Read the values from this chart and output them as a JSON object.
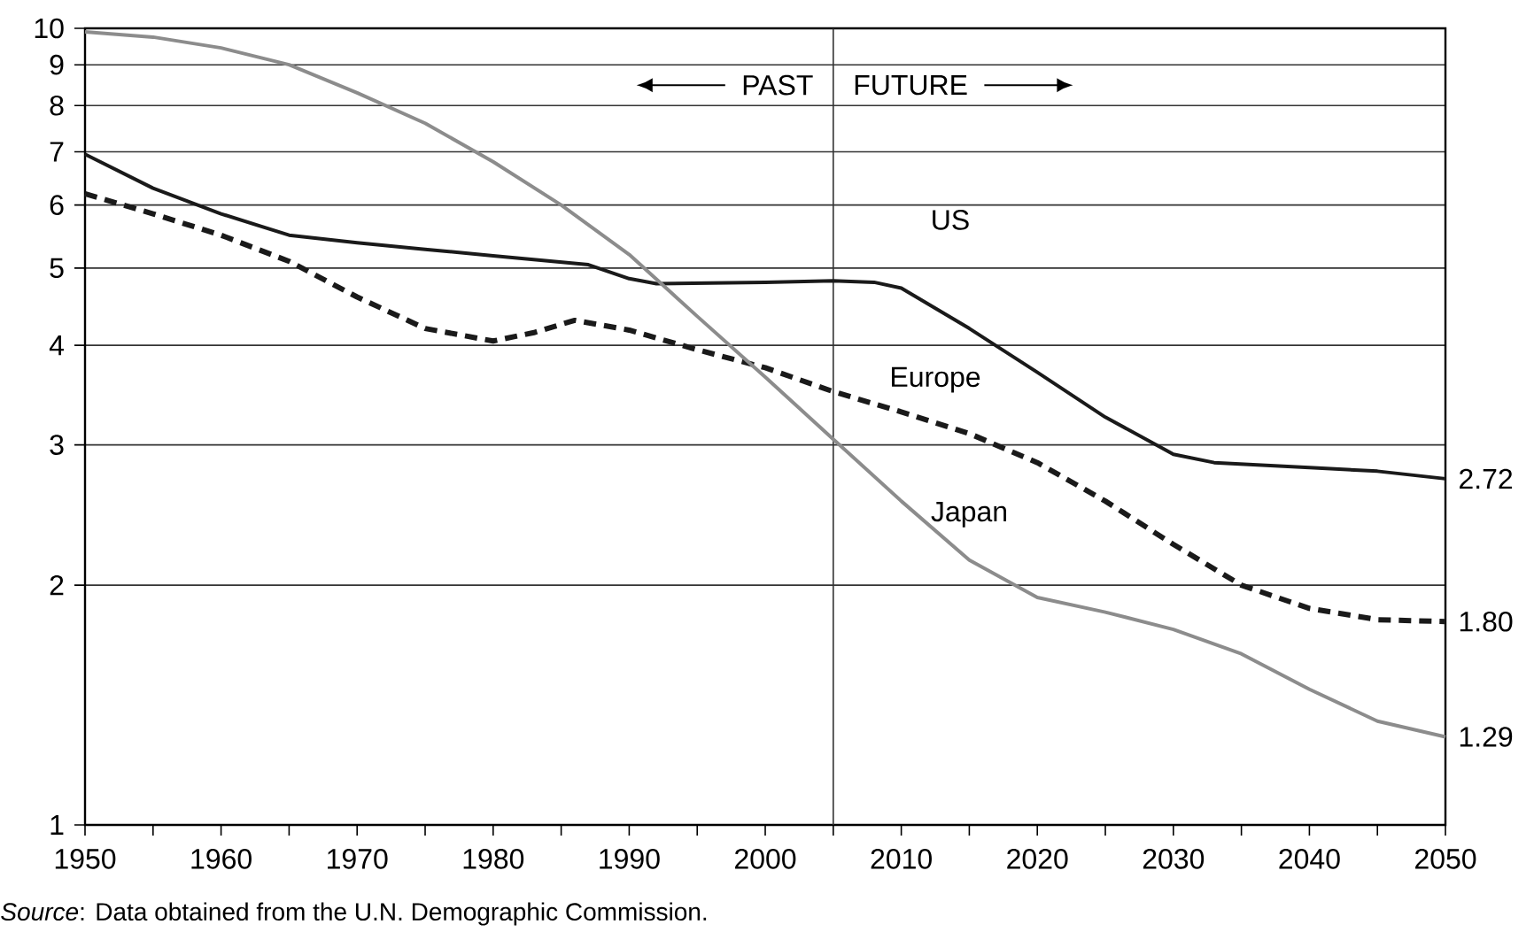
{
  "chart_data": {
    "type": "line",
    "log": "y",
    "grid": "y",
    "marker": "none",
    "xlim": [
      1950,
      2050
    ],
    "ylim": [
      1,
      10
    ],
    "xticks": [
      1950,
      {
        "value": 1955,
        "label": null
      },
      1960,
      {
        "value": 1965,
        "label": null
      },
      1970,
      {
        "value": 1975,
        "label": null
      },
      1980,
      {
        "value": 1985,
        "label": null
      },
      1990,
      {
        "value": 1995,
        "label": null
      },
      2000,
      {
        "value": 2005,
        "label": null
      },
      2010,
      {
        "value": 2015,
        "label": null
      },
      2020,
      {
        "value": 2025,
        "label": null
      },
      2030,
      {
        "value": 2035,
        "label": null
      },
      2040,
      {
        "value": 2045,
        "label": null
      },
      2050
    ],
    "yticks": [
      1,
      2,
      3,
      4,
      5,
      6,
      7,
      8,
      9,
      10
    ],
    "ref_lines": [
      {
        "axis": "x",
        "value": 2005,
        "color": "#333333"
      }
    ],
    "annotations": [
      "PAST",
      "FUTURE",
      "*Source*: Data obtained from the U.N. Demographic Commission."
    ],
    "series": [
      {
        "name": "US",
        "color": "#1a1a1a",
        "line_style": "solid",
        "x": [
          1950,
          1955,
          1960,
          1965,
          1970,
          1975,
          1980,
          1987,
          1990,
          1992,
          2000,
          2005,
          2008,
          2010,
          2015,
          2020,
          2025,
          2030,
          2033,
          2040,
          2045,
          2050
        ],
        "values": [
          6.95,
          6.3,
          5.85,
          5.5,
          5.38,
          5.28,
          5.18,
          5.05,
          4.85,
          4.78,
          4.8,
          4.82,
          4.8,
          4.72,
          4.2,
          3.7,
          3.25,
          2.92,
          2.85,
          2.81,
          2.78,
          2.72
        ],
        "value_labels": [
          null,
          null,
          null,
          null,
          null,
          null,
          null,
          null,
          null,
          null,
          null,
          null,
          null,
          null,
          null,
          null,
          null,
          null,
          null,
          null,
          null,
          "2.72"
        ]
      },
      {
        "name": "Europe",
        "color": "#1a1a1a",
        "line_style": "dashed",
        "x": [
          1950,
          1955,
          1960,
          1965,
          1970,
          1975,
          1980,
          1983,
          1986,
          1990,
          1995,
          2000,
          2005,
          2010,
          2015,
          2020,
          2025,
          2030,
          2035,
          2040,
          2045,
          2050
        ],
        "values": [
          6.2,
          5.85,
          5.5,
          5.1,
          4.6,
          4.2,
          4.05,
          4.15,
          4.3,
          4.18,
          3.95,
          3.75,
          3.5,
          3.3,
          3.1,
          2.85,
          2.55,
          2.25,
          2.0,
          1.87,
          1.81,
          1.8
        ],
        "value_labels": [
          null,
          null,
          null,
          null,
          null,
          null,
          null,
          null,
          null,
          null,
          null,
          null,
          null,
          null,
          null,
          null,
          null,
          null,
          null,
          null,
          null,
          "1.80"
        ]
      },
      {
        "name": "Japan",
        "color": "#8c8c8c",
        "line_style": "solid",
        "x": [
          1950,
          1955,
          1960,
          1965,
          1970,
          1975,
          1980,
          1985,
          1990,
          1995,
          2000,
          2005,
          2010,
          2015,
          2020,
          2025,
          2030,
          2035,
          2040,
          2045,
          2050
        ],
        "values": [
          9.9,
          9.75,
          9.45,
          9.0,
          8.3,
          7.6,
          6.8,
          6.0,
          5.2,
          4.35,
          3.65,
          3.05,
          2.55,
          2.15,
          1.93,
          1.85,
          1.76,
          1.64,
          1.48,
          1.35,
          1.29
        ],
        "value_labels": [
          null,
          null,
          null,
          null,
          null,
          null,
          null,
          null,
          null,
          null,
          null,
          null,
          null,
          null,
          null,
          null,
          null,
          null,
          null,
          null,
          "1.29"
        ]
      }
    ]
  }
}
